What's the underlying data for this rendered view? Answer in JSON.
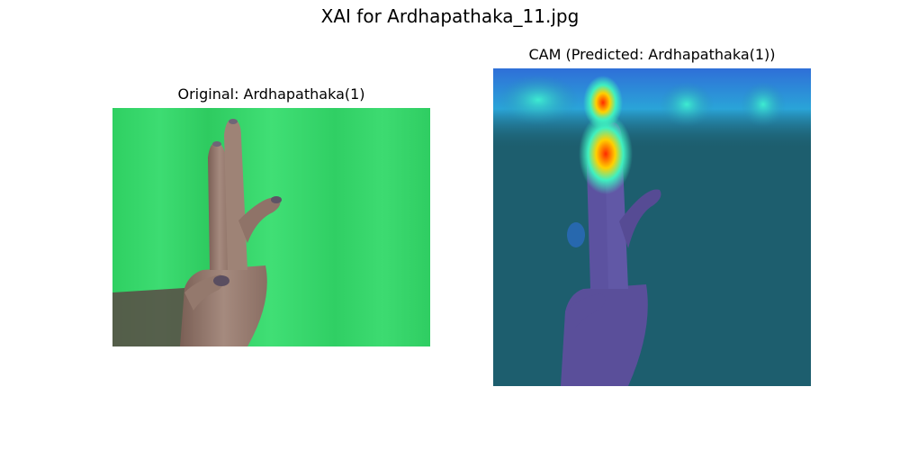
{
  "figure": {
    "title": "XAI for Ardhapathaka_11.jpg"
  },
  "panels": [
    {
      "title": "Original: Ardhapathaka(1)",
      "content": "photo of hand gesture on green backdrop"
    },
    {
      "title": "CAM (Predicted: Ardhapathaka(1))",
      "content": "class activation map heatmap overlay"
    }
  ],
  "colors": {
    "backdrop_green": "#35d66a",
    "skin": "#8f7368",
    "heatmap_base": "#1d5e6e",
    "heatmap_hot": "#ff2a00"
  }
}
